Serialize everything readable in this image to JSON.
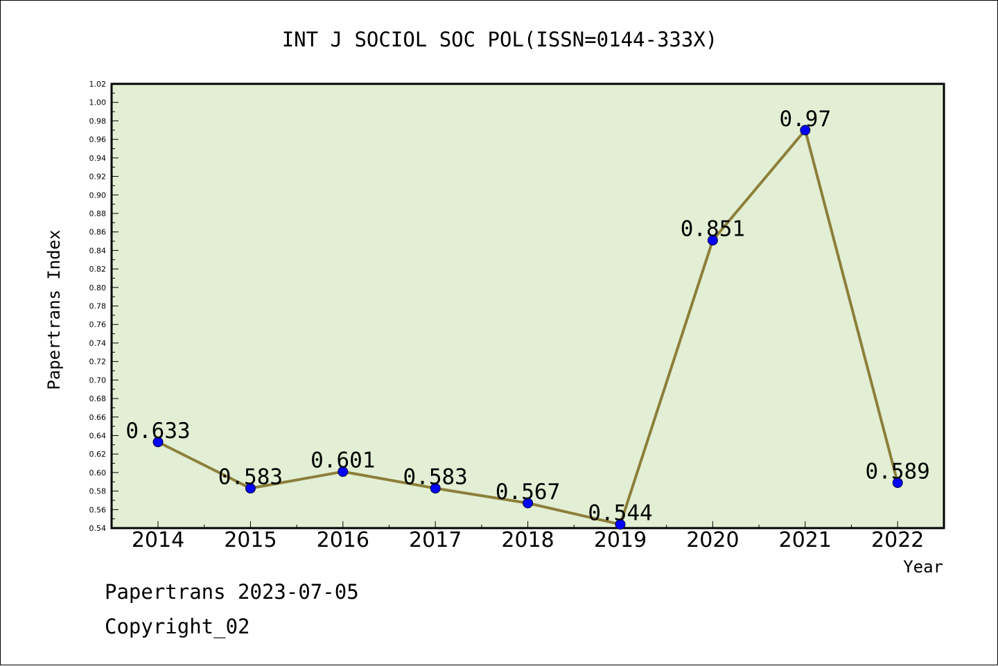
{
  "chart_data": {
    "type": "line",
    "title": "INT J SOCIOL SOC POL(ISSN=0144-333X)",
    "xlabel": "Year",
    "ylabel": "Papertrans Index",
    "x": [
      "2014",
      "2015",
      "2016",
      "2017",
      "2018",
      "2019",
      "2020",
      "2021",
      "2022"
    ],
    "values": [
      0.633,
      0.583,
      0.601,
      0.583,
      0.567,
      0.544,
      0.851,
      0.97,
      0.589
    ],
    "data_labels": [
      "0.633",
      "0.583",
      "0.601",
      "0.583",
      "0.567",
      "0.544",
      "0.851",
      "0.97",
      "0.589"
    ],
    "ylim": [
      0.54,
      1.02
    ],
    "yticks": [
      "0.54",
      "0.56",
      "0.58",
      "0.60",
      "0.62",
      "0.64",
      "0.66",
      "0.68",
      "0.70",
      "0.72",
      "0.74",
      "0.76",
      "0.78",
      "0.80",
      "0.82",
      "0.84",
      "0.86",
      "0.88",
      "0.90",
      "0.92",
      "0.94",
      "0.96",
      "0.98",
      "1.00",
      "1.02"
    ],
    "grid": false,
    "legend": "none",
    "colors": {
      "plot_background": "#e2efd4",
      "line": "#8c7f3a",
      "marker": "#0000ff",
      "axis": "#000000"
    }
  },
  "footer": {
    "line1": "Papertrans 2023-07-05",
    "line2": "Copyright_02"
  }
}
